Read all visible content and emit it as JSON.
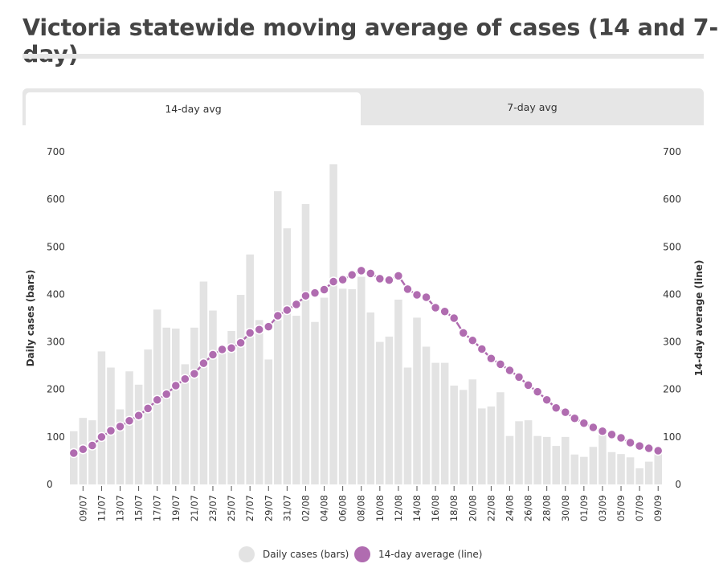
{
  "title": "Victoria statewide moving average of cases (14 and 7-day)",
  "tabs": [
    {
      "label": "14-day avg",
      "active": true
    },
    {
      "label": "7-day avg",
      "active": false
    }
  ],
  "colors": {
    "bars": "#e3e3e3",
    "line": "#b06cb0",
    "axis_text": "#333333"
  },
  "chart_data": {
    "type": "bar+line",
    "y_left_label": "Daily cases (bars)",
    "y_right_label": "14-day average (line)",
    "ylim": [
      0,
      700
    ],
    "yticks": [
      0,
      100,
      200,
      300,
      400,
      500,
      600,
      700
    ],
    "categories": [
      "08/07",
      "09/07",
      "10/07",
      "11/07",
      "12/07",
      "13/07",
      "14/07",
      "15/07",
      "16/07",
      "17/07",
      "18/07",
      "19/07",
      "20/07",
      "21/07",
      "22/07",
      "23/07",
      "24/07",
      "25/07",
      "26/07",
      "27/07",
      "28/07",
      "29/07",
      "30/07",
      "31/07",
      "01/08",
      "02/08",
      "03/08",
      "04/08",
      "05/08",
      "06/08",
      "07/08",
      "08/08",
      "09/08",
      "10/08",
      "11/08",
      "12/08",
      "13/08",
      "14/08",
      "15/08",
      "16/08",
      "17/08",
      "18/08",
      "19/08",
      "20/08",
      "21/08",
      "22/08",
      "23/08",
      "24/08",
      "25/08",
      "26/08",
      "27/08",
      "28/08",
      "29/08",
      "30/08",
      "31/08",
      "01/09",
      "02/09",
      "03/09",
      "04/09",
      "05/09",
      "06/09",
      "07/09",
      "08/09",
      "09/09"
    ],
    "tick_labels": [
      "09/07",
      "11/07",
      "13/07",
      "15/07",
      "17/07",
      "19/07",
      "21/07",
      "23/07",
      "25/07",
      "27/07",
      "29/07",
      "31/07",
      "02/08",
      "04/08",
      "06/08",
      "08/08",
      "10/08",
      "12/08",
      "14/08",
      "16/08",
      "18/08",
      "20/08",
      "22/08",
      "24/08",
      "26/08",
      "28/08",
      "30/08",
      "01/09",
      "03/09",
      "05/09",
      "07/09",
      "09/09"
    ],
    "series": [
      {
        "name": "Daily cases (bars)",
        "type": "bar",
        "values": [
          112,
          140,
          135,
          280,
          246,
          158,
          238,
          210,
          284,
          368,
          330,
          328,
          253,
          330,
          427,
          366,
          276,
          323,
          399,
          484,
          346,
          263,
          617,
          539,
          355,
          590,
          342,
          393,
          674,
          412,
          411,
          437,
          362,
          300,
          311,
          389,
          246,
          351,
          290,
          256,
          256,
          208,
          199,
          221,
          160,
          164,
          194,
          102,
          133,
          135,
          102,
          100,
          81,
          100,
          63,
          58,
          79,
          104,
          68,
          64,
          57,
          34,
          48,
          64
        ]
      },
      {
        "name": "14-day average (line)",
        "type": "line",
        "values": [
          66,
          74,
          82,
          100,
          113,
          122,
          134,
          145,
          160,
          178,
          190,
          208,
          222,
          233,
          255,
          273,
          284,
          287,
          298,
          319,
          326,
          332,
          355,
          367,
          379,
          397,
          403,
          410,
          427,
          431,
          441,
          450,
          444,
          433,
          430,
          439,
          411,
          399,
          394,
          372,
          364,
          350,
          319,
          303,
          285,
          265,
          253,
          240,
          226,
          209,
          195,
          178,
          161,
          152,
          139,
          129,
          120,
          112,
          105,
          98,
          88,
          81,
          76,
          71
        ]
      }
    ]
  },
  "legend": [
    {
      "label": "Daily cases (bars)",
      "color": "#e3e3e3"
    },
    {
      "label": "14-day average (line)",
      "color": "#b06cb0"
    }
  ]
}
